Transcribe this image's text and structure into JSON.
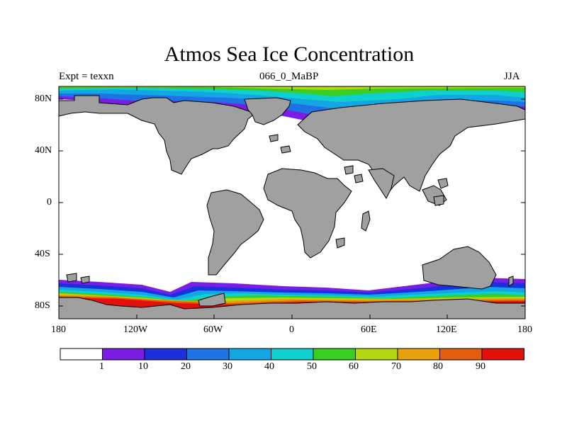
{
  "title": "Atmos Sea Ice Concentration",
  "left_label": "Expt = texxn",
  "center_label": "066_0_MaBP",
  "right_label": "JJA",
  "y_ticks": [
    "80N",
    "40N",
    "0",
    "40S",
    "80S"
  ],
  "x_ticks": [
    "180",
    "120W",
    "60W",
    "0",
    "60E",
    "120E",
    "180"
  ],
  "colorbar": {
    "labels": [
      "1",
      "10",
      "20",
      "30",
      "40",
      "50",
      "60",
      "70",
      "80",
      "90"
    ],
    "colors": [
      "#ffffff",
      "#7a1ee6",
      "#1c2fdc",
      "#1f72e3",
      "#14a6e3",
      "#0fcfcf",
      "#38cf22",
      "#b4d715",
      "#e7a10c",
      "#e35d0c",
      "#e3100c"
    ]
  },
  "colors": {
    "land": "#a0a0a0",
    "ocean": "#ffffff"
  }
}
